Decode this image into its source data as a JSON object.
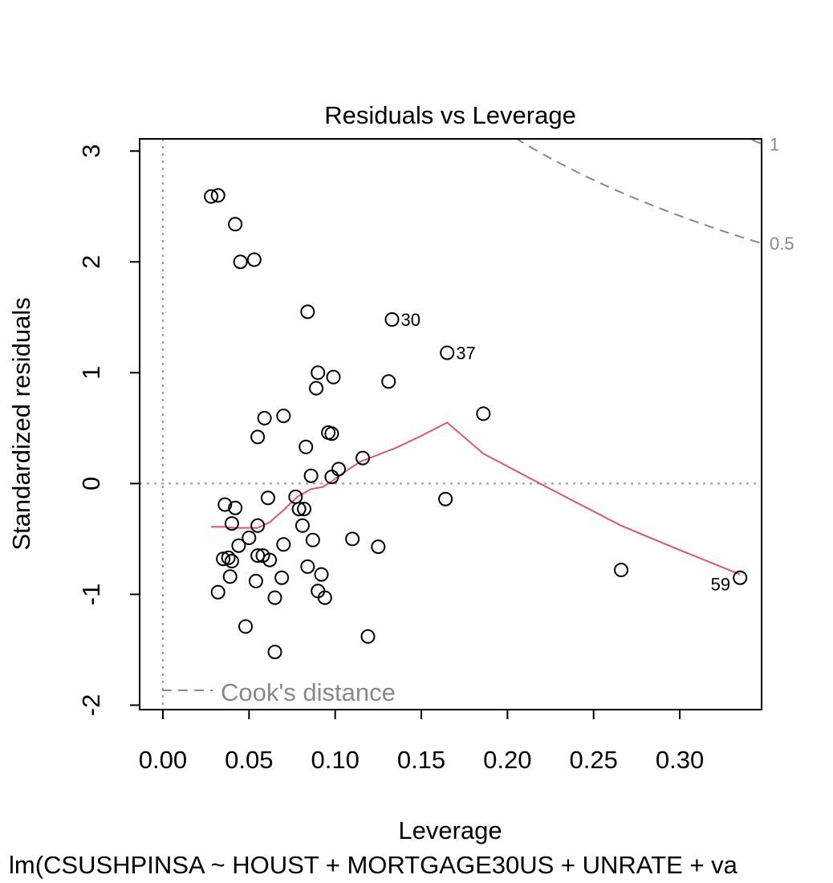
{
  "chart_data": {
    "type": "scatter",
    "title": "Residuals vs Leverage",
    "xlabel": "Leverage",
    "ylabel": "Standardized residuals",
    "subtitle": "lm(CSUSHPINSA ~ HOUST + MORTGAGE30US + UNRATE + va",
    "xlim": [
      -0.0135,
      0.3475
    ],
    "ylim": [
      -2.04,
      3.11
    ],
    "x_ticks": [
      {
        "v": 0.0,
        "label": "0.00"
      },
      {
        "v": 0.05,
        "label": "0.05"
      },
      {
        "v": 0.1,
        "label": "0.10"
      },
      {
        "v": 0.15,
        "label": "0.15"
      },
      {
        "v": 0.2,
        "label": "0.20"
      },
      {
        "v": 0.25,
        "label": "0.25"
      },
      {
        "v": 0.3,
        "label": "0.30"
      }
    ],
    "y_ticks": [
      {
        "v": -2,
        "label": "-2"
      },
      {
        "v": -1,
        "label": "-1"
      },
      {
        "v": 0,
        "label": "0"
      },
      {
        "v": 1,
        "label": "1"
      },
      {
        "v": 2,
        "label": "2"
      },
      {
        "v": 3,
        "label": "3"
      }
    ],
    "points": [
      {
        "x": 0.028,
        "y": 2.59
      },
      {
        "x": 0.032,
        "y": 2.6
      },
      {
        "x": 0.042,
        "y": 2.34
      },
      {
        "x": 0.045,
        "y": 2.0
      },
      {
        "x": 0.053,
        "y": 2.02
      },
      {
        "x": 0.084,
        "y": 1.55
      },
      {
        "x": 0.133,
        "y": 1.48,
        "label": "30"
      },
      {
        "x": 0.165,
        "y": 1.18,
        "label": "37"
      },
      {
        "x": 0.09,
        "y": 1.0
      },
      {
        "x": 0.099,
        "y": 0.96
      },
      {
        "x": 0.089,
        "y": 0.86
      },
      {
        "x": 0.131,
        "y": 0.92
      },
      {
        "x": 0.186,
        "y": 0.63
      },
      {
        "x": 0.059,
        "y": 0.59
      },
      {
        "x": 0.07,
        "y": 0.61
      },
      {
        "x": 0.055,
        "y": 0.42
      },
      {
        "x": 0.096,
        "y": 0.46
      },
      {
        "x": 0.098,
        "y": 0.45
      },
      {
        "x": 0.083,
        "y": 0.33
      },
      {
        "x": 0.116,
        "y": 0.23
      },
      {
        "x": 0.102,
        "y": 0.13
      },
      {
        "x": 0.086,
        "y": 0.07
      },
      {
        "x": 0.098,
        "y": 0.06
      },
      {
        "x": 0.077,
        "y": -0.12
      },
      {
        "x": 0.061,
        "y": -0.13
      },
      {
        "x": 0.164,
        "y": -0.14
      },
      {
        "x": 0.036,
        "y": -0.19
      },
      {
        "x": 0.042,
        "y": -0.22
      },
      {
        "x": 0.079,
        "y": -0.23
      },
      {
        "x": 0.082,
        "y": -0.23
      },
      {
        "x": 0.04,
        "y": -0.36
      },
      {
        "x": 0.055,
        "y": -0.38
      },
      {
        "x": 0.081,
        "y": -0.38
      },
      {
        "x": 0.05,
        "y": -0.49
      },
      {
        "x": 0.11,
        "y": -0.5
      },
      {
        "x": 0.087,
        "y": -0.51
      },
      {
        "x": 0.044,
        "y": -0.56
      },
      {
        "x": 0.07,
        "y": -0.55
      },
      {
        "x": 0.125,
        "y": -0.57
      },
      {
        "x": 0.055,
        "y": -0.65
      },
      {
        "x": 0.058,
        "y": -0.65
      },
      {
        "x": 0.062,
        "y": -0.69
      },
      {
        "x": 0.035,
        "y": -0.68
      },
      {
        "x": 0.038,
        "y": -0.67
      },
      {
        "x": 0.04,
        "y": -0.7
      },
      {
        "x": 0.266,
        "y": -0.78
      },
      {
        "x": 0.084,
        "y": -0.75
      },
      {
        "x": 0.092,
        "y": -0.82
      },
      {
        "x": 0.039,
        "y": -0.84
      },
      {
        "x": 0.054,
        "y": -0.88
      },
      {
        "x": 0.069,
        "y": -0.85
      },
      {
        "x": 0.335,
        "y": -0.85,
        "label": "59"
      },
      {
        "x": 0.032,
        "y": -0.98
      },
      {
        "x": 0.09,
        "y": -0.97
      },
      {
        "x": 0.065,
        "y": -1.03
      },
      {
        "x": 0.094,
        "y": -1.03
      },
      {
        "x": 0.048,
        "y": -1.29
      },
      {
        "x": 0.119,
        "y": -1.38
      },
      {
        "x": 0.065,
        "y": -1.52
      }
    ],
    "smooth_line": {
      "color": "#DF536B",
      "x": [
        0.028,
        0.035,
        0.042,
        0.048,
        0.055,
        0.062,
        0.07,
        0.078,
        0.086,
        0.093,
        0.098,
        0.106,
        0.115,
        0.125,
        0.135,
        0.15,
        0.165,
        0.186,
        0.225,
        0.266,
        0.3,
        0.335
      ],
      "y": [
        -0.39,
        -0.39,
        -0.4,
        -0.4,
        -0.4,
        -0.35,
        -0.24,
        -0.12,
        -0.05,
        -0.03,
        0.02,
        0.11,
        0.2,
        0.26,
        0.32,
        0.43,
        0.55,
        0.27,
        -0.05,
        -0.38,
        -0.6,
        -0.82
      ]
    },
    "reference_line": {
      "y": 0,
      "style": "dotted",
      "color": "#999999"
    },
    "zero_leverage_line": {
      "x": 0,
      "style": "dotted",
      "color": "#999999"
    },
    "cooks_distance": {
      "color": "#888888",
      "contours": [
        {
          "level": 1,
          "label": "1",
          "x_range": [
            0.2,
            0.3475
          ]
        },
        {
          "level": 0.5,
          "label": "0.5",
          "x_range": [
            0.105,
            0.3475
          ]
        }
      ],
      "n_params": 5
    },
    "legend": {
      "label": "Cook's distance",
      "position": "bottom-left"
    },
    "grid": false
  }
}
